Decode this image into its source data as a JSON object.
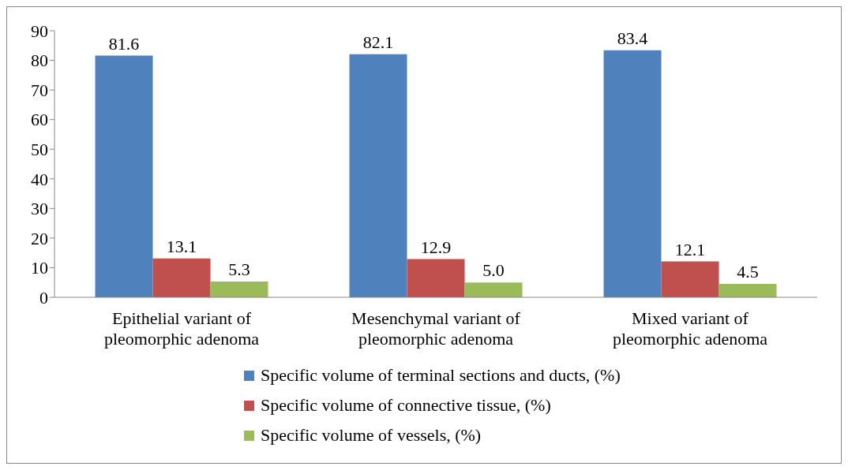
{
  "chart_data": {
    "type": "bar",
    "categories": [
      "Epithelial variant of pleomorphic adenoma",
      "Mesenchymal variant of pleomorphic adenoma",
      "Mixed variant of pleomorphic adenoma"
    ],
    "series": [
      {
        "name": "Specific volume of terminal sections and ducts, (%)",
        "color": "#4f81bd",
        "values": [
          81.6,
          82.1,
          83.4
        ],
        "value_labels": [
          "81.6",
          "82.1",
          "83.4"
        ]
      },
      {
        "name": "Specific volume of connective tissue, (%)",
        "color": "#c0504d",
        "values": [
          13.1,
          12.9,
          12.1
        ],
        "value_labels": [
          "13.1",
          "12.9",
          "12.1"
        ]
      },
      {
        "name": "Specific volume of vessels, (%)",
        "color": "#9bbb59",
        "values": [
          5.3,
          5.0,
          4.5
        ],
        "value_labels": [
          "5.3",
          "5.0",
          "4.5"
        ]
      }
    ],
    "ylim": [
      0,
      90
    ],
    "yticks": [
      0,
      10,
      20,
      30,
      40,
      50,
      60,
      70,
      80,
      90
    ],
    "grid": false,
    "legend": "bottom"
  }
}
